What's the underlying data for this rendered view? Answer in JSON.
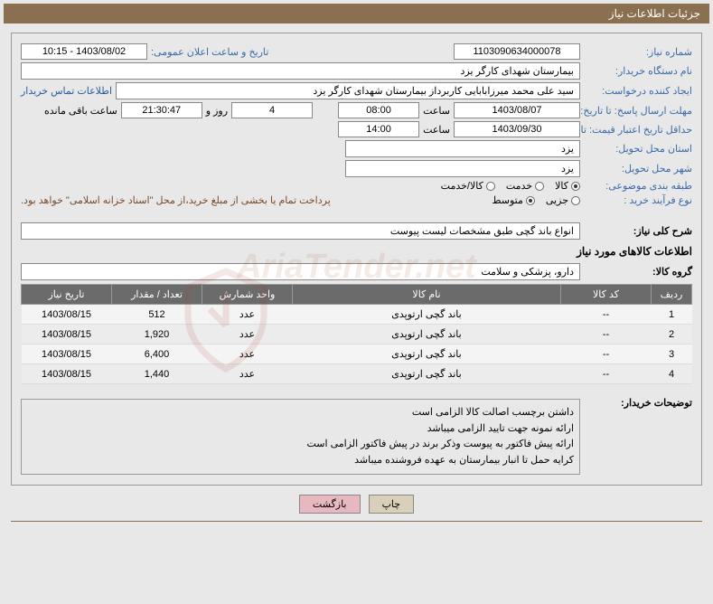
{
  "header": {
    "title": "جزئیات اطلاعات نیاز"
  },
  "fields": {
    "need_no_label": "شماره نیاز:",
    "need_no": "1103090634000078",
    "announce_label": "تاریخ و ساعت اعلان عمومی:",
    "announce_val": "1403/08/02 - 10:15",
    "buyer_org_label": "نام دستگاه خریدار:",
    "buyer_org": "بیمارستان شهدای کارگر یزد",
    "requester_label": "ایجاد کننده درخواست:",
    "requester": "سید علی محمد میرزابابایی کاربرداز بیمارستان شهدای کارگر یزد",
    "contact_link": "اطلاعات تماس خریدار",
    "reply_deadline_label": "مهلت ارسال پاسخ: تا تاریخ:",
    "reply_date": "1403/08/07",
    "time_label": "ساعت",
    "reply_time": "08:00",
    "days_left": "4",
    "days_suffix": "روز و",
    "countdown": "21:30:47",
    "countdown_suffix": "ساعت باقی مانده",
    "price_valid_label": "حداقل تاریخ اعتبار قیمت: تا",
    "price_valid_date": "1403/09/30",
    "price_valid_time": "14:00",
    "delivery_province_label": "استان محل تحویل:",
    "delivery_province": "یزد",
    "delivery_city_label": "شهر محل تحویل:",
    "delivery_city": "یزد",
    "category_label": "طبقه بندی موضوعی:",
    "cat_goods": "کالا",
    "cat_service": "خدمت",
    "cat_both": "کالا/خدمت",
    "process_type_label": "نوع فرآیند خرید :",
    "proc_partial": "جزیی",
    "proc_medium": "متوسط",
    "payment_note": "پرداخت تمام یا بخشی از مبلغ خرید،از محل \"اسناد خزانه اسلامی\" خواهد بود.",
    "need_desc_label": "شرح کلی نیاز:",
    "need_desc": "انواع باند گچی طبق مشخصات لیست پیوست",
    "goods_info_title": "اطلاعات کالاهای مورد نیاز",
    "goods_group_label": "گروه کالا:",
    "goods_group": "دارو، پزشکی و سلامت",
    "buyer_notes_label": "توضیحات خریدار:",
    "notes": [
      "داشتن برچسب اصالت کالا الزامی است",
      "ارائه نمونه جهت تایید الزامی میباشد",
      "ارائه پیش فاکتور به پیوست وذکر برند در پیش فاکتور الزامی است",
      "کرایه حمل تا انبار بیمارستان به عهده فروشنده میباشد"
    ]
  },
  "table": {
    "headers": {
      "row": "ردیف",
      "code": "کد کالا",
      "name": "نام کالا",
      "unit": "واحد شمارش",
      "qty": "تعداد / مقدار",
      "date": "تاریخ نیاز"
    },
    "rows": [
      {
        "row": "1",
        "code": "--",
        "name": "باند گچی ارتوپدی",
        "unit": "عدد",
        "qty": "512",
        "date": "1403/08/15"
      },
      {
        "row": "2",
        "code": "--",
        "name": "باند گچی ارتوپدی",
        "unit": "عدد",
        "qty": "1,920",
        "date": "1403/08/15"
      },
      {
        "row": "3",
        "code": "--",
        "name": "باند گچی ارتوپدی",
        "unit": "عدد",
        "qty": "6,400",
        "date": "1403/08/15"
      },
      {
        "row": "4",
        "code": "--",
        "name": "باند گچی ارتوپدی",
        "unit": "عدد",
        "qty": "1,440",
        "date": "1403/08/15"
      }
    ]
  },
  "buttons": {
    "print": "چاپ",
    "back": "بازگشت"
  },
  "watermark": "AriaTender.net"
}
